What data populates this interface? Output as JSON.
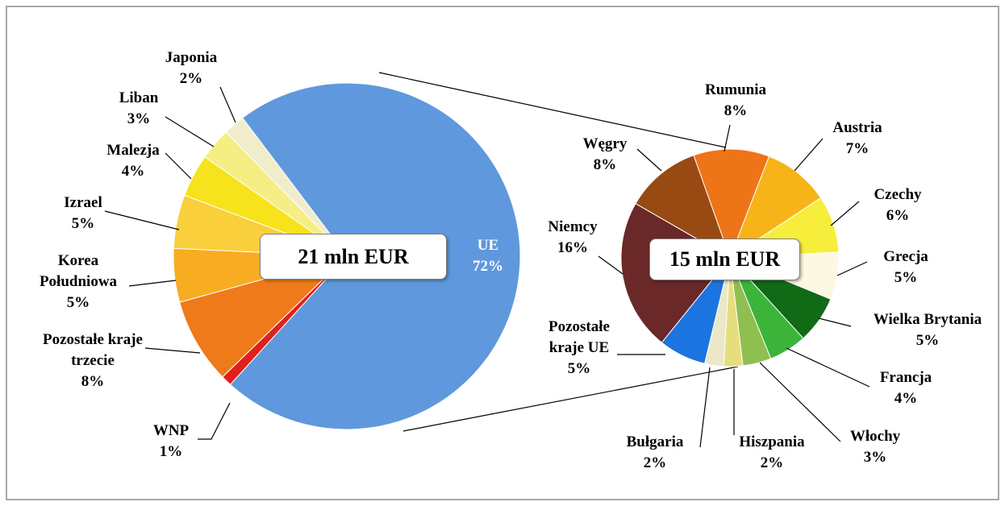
{
  "chart_data": [
    {
      "type": "pie",
      "center_label": "21 mln EUR",
      "categories": [
        "UE",
        "WNP",
        "Pozostałe kraje trzecie",
        "Korea Południowa",
        "Izrael",
        "Malezja",
        "Liban",
        "Japonia"
      ],
      "values": [
        72,
        1,
        8,
        5,
        5,
        4,
        3,
        2
      ],
      "value_labels": [
        "72%",
        "1%",
        "8%",
        "5%",
        "5%",
        "4%",
        "3%",
        "2%"
      ],
      "colors": [
        "#5f98dc",
        "#e0201c",
        "#ee7a1a",
        "#f8ac22",
        "#f9cf3c",
        "#f6e31c",
        "#f5ee84",
        "#f1edcc"
      ]
    },
    {
      "type": "pie",
      "center_label": "15 mln EUR",
      "categories": [
        "Rumunia",
        "Austria",
        "Czechy",
        "Grecja",
        "Wielka Brytania",
        "Francja",
        "Włochy",
        "Hiszpania",
        "Bułgaria",
        "Pozostałe kraje UE",
        "Niemcy",
        "Węgry"
      ],
      "values": [
        8,
        7,
        6,
        5,
        5,
        4,
        3,
        2,
        2,
        5,
        16,
        8
      ],
      "value_labels": [
        "8%",
        "7%",
        "6%",
        "5%",
        "5%",
        "4%",
        "3%",
        "2%",
        "2%",
        "5%",
        "16%",
        "8%"
      ],
      "colors": [
        "#ee7418",
        "#f6b418",
        "#f6ee3a",
        "#fdf8e2",
        "#116a16",
        "#3cb43a",
        "#8fbf50",
        "#e6de7c",
        "#ebe7c8",
        "#1c74e0",
        "#6a2828",
        "#984a12"
      ]
    }
  ]
}
